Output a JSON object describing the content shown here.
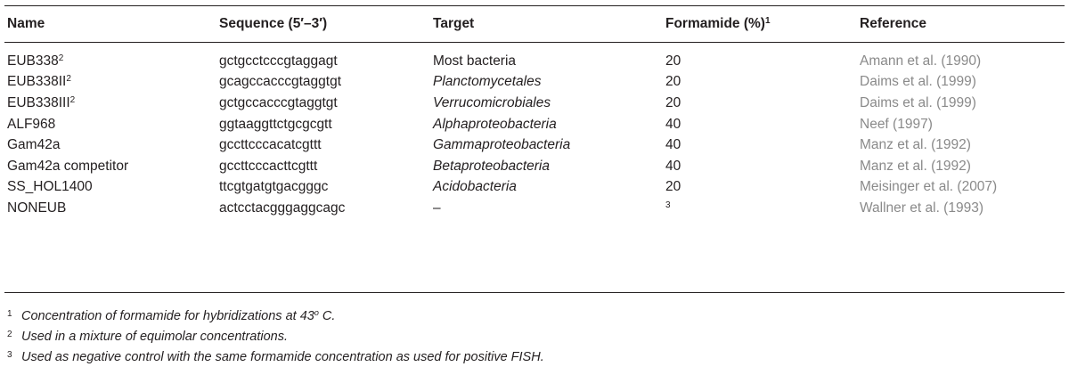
{
  "table": {
    "headers": {
      "name": "Name",
      "sequence": "Sequence (5′–3′)",
      "target": "Target",
      "formamide": "Formamide (%)",
      "formamide_sup": "1",
      "reference": "Reference"
    },
    "rows": [
      {
        "name": "EUB338",
        "name_sup": "2",
        "sequence": "gctgcctcccgtaggagt",
        "target": "Most bacteria",
        "target_italic": false,
        "formamide": "20",
        "formamide_sup": "",
        "reference": "Amann et al. (1990)"
      },
      {
        "name": "EUB338II",
        "name_sup": "2",
        "sequence": "gcagccacccgtaggtgt",
        "target": "Planctomycetales",
        "target_italic": true,
        "formamide": "20",
        "formamide_sup": "",
        "reference": "Daims et al. (1999)"
      },
      {
        "name": "EUB338III",
        "name_sup": "2",
        "sequence": "gctgccacccgtaggtgt",
        "target": "Verrucomicrobiales",
        "target_italic": true,
        "formamide": "20",
        "formamide_sup": "",
        "reference": "Daims et al. (1999)"
      },
      {
        "name": "ALF968",
        "name_sup": "",
        "sequence": "ggtaaggttctgcgcgtt",
        "target": "Alphaproteobacteria",
        "target_italic": true,
        "formamide": "40",
        "formamide_sup": "",
        "reference": "Neef (1997)"
      },
      {
        "name": "Gam42a",
        "name_sup": "",
        "sequence": "gccttcccacatcgttt",
        "target": "Gammaproteobacteria",
        "target_italic": true,
        "formamide": "40",
        "formamide_sup": "",
        "reference": "Manz et al. (1992)"
      },
      {
        "name": "Gam42a competitor",
        "name_sup": "",
        "sequence": "gccttcccacttcgttt",
        "target": "Betaproteobacteria",
        "target_italic": true,
        "formamide": "40",
        "formamide_sup": "",
        "reference": "Manz et al. (1992)"
      },
      {
        "name": "SS_HOL1400",
        "name_sup": "",
        "sequence": "ttcgtgatgtgacgggc",
        "target": "Acidobacteria",
        "target_italic": true,
        "formamide": "20",
        "formamide_sup": "",
        "reference": "Meisinger et al. (2007)"
      },
      {
        "name": "NONEUB",
        "name_sup": "",
        "sequence": "actcctacgggaggcagc",
        "target": "–",
        "target_italic": false,
        "formamide": "",
        "formamide_sup": "3",
        "reference": "Wallner et al. (1993)"
      }
    ]
  },
  "footnotes": [
    {
      "num": "1",
      "text": "Concentration of formamide for hybridizations at 43",
      "sup": "o",
      "tail": " C."
    },
    {
      "num": "2",
      "text": "Used in a mixture of equimolar concentrations.",
      "sup": "",
      "tail": ""
    },
    {
      "num": "3",
      "text": "Used as negative control with the same formamide concentration as used for positive FISH.",
      "sup": "",
      "tail": ""
    }
  ]
}
